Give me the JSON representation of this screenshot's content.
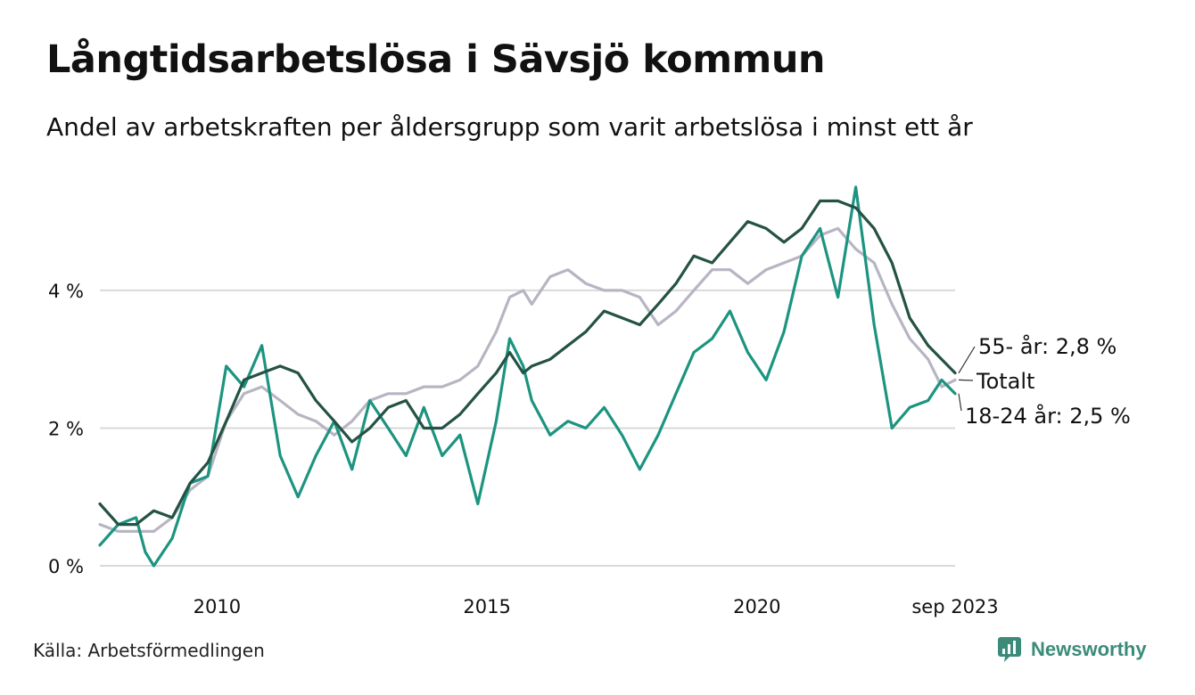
{
  "header": {
    "title": "Långtidsarbetslösa i Sävsjö kommun",
    "subtitle": "Andel av arbetskraften per åldersgrupp som varit arbetslösa i minst ett år"
  },
  "footer": {
    "source": "Källa: Arbetsförmedlingen",
    "brand": "Newsworthy"
  },
  "colors": {
    "series_55": "#245244",
    "series_total": "#b8b5c3",
    "series_18_24": "#1c9480",
    "grid": "#d9d9d9",
    "brand": "#3a8b7a"
  },
  "chart_data": {
    "type": "line",
    "title": "Långtidsarbetslösa i Sävsjö kommun",
    "xlabel": "",
    "ylabel": "",
    "xlim": [
      2007.83,
      2023.67
    ],
    "ylim": [
      0,
      5.5
    ],
    "grid": true,
    "y_ticks": [
      {
        "value": 0,
        "label": "0 %"
      },
      {
        "value": 2,
        "label": "2 %"
      },
      {
        "value": 4,
        "label": "4 %"
      }
    ],
    "x_ticks": [
      {
        "value": 2010,
        "label": "2010"
      },
      {
        "value": 2015,
        "label": "2015"
      },
      {
        "value": 2020,
        "label": "2020"
      },
      {
        "value": 2023.67,
        "label": "sep 2023"
      }
    ],
    "end_labels": [
      {
        "series": "55",
        "text": "55- år: 2,8 %"
      },
      {
        "series": "total",
        "text": "Totalt"
      },
      {
        "series": "18_24",
        "text": "18-24 år: 2,5 %"
      }
    ],
    "series": [
      {
        "id": "total",
        "name": "Totalt",
        "points": [
          [
            2007.83,
            0.6
          ],
          [
            2008.17,
            0.5
          ],
          [
            2008.5,
            0.5
          ],
          [
            2008.83,
            0.5
          ],
          [
            2009.17,
            0.7
          ],
          [
            2009.5,
            1.1
          ],
          [
            2009.83,
            1.3
          ],
          [
            2010.17,
            2.1
          ],
          [
            2010.5,
            2.5
          ],
          [
            2010.83,
            2.6
          ],
          [
            2011.17,
            2.4
          ],
          [
            2011.5,
            2.2
          ],
          [
            2011.83,
            2.1
          ],
          [
            2012.17,
            1.9
          ],
          [
            2012.5,
            2.1
          ],
          [
            2012.83,
            2.4
          ],
          [
            2013.17,
            2.5
          ],
          [
            2013.5,
            2.5
          ],
          [
            2013.83,
            2.6
          ],
          [
            2014.17,
            2.6
          ],
          [
            2014.5,
            2.7
          ],
          [
            2014.83,
            2.9
          ],
          [
            2015.17,
            3.4
          ],
          [
            2015.42,
            3.9
          ],
          [
            2015.67,
            4.0
          ],
          [
            2015.83,
            3.8
          ],
          [
            2016.17,
            4.2
          ],
          [
            2016.5,
            4.3
          ],
          [
            2016.83,
            4.1
          ],
          [
            2017.17,
            4.0
          ],
          [
            2017.5,
            4.0
          ],
          [
            2017.83,
            3.9
          ],
          [
            2018.17,
            3.5
          ],
          [
            2018.5,
            3.7
          ],
          [
            2018.83,
            4.0
          ],
          [
            2019.17,
            4.3
          ],
          [
            2019.5,
            4.3
          ],
          [
            2019.83,
            4.1
          ],
          [
            2020.17,
            4.3
          ],
          [
            2020.5,
            4.4
          ],
          [
            2020.83,
            4.5
          ],
          [
            2021.17,
            4.8
          ],
          [
            2021.5,
            4.9
          ],
          [
            2021.83,
            4.6
          ],
          [
            2022.17,
            4.4
          ],
          [
            2022.5,
            3.8
          ],
          [
            2022.83,
            3.3
          ],
          [
            2023.17,
            3.0
          ],
          [
            2023.42,
            2.6
          ],
          [
            2023.67,
            2.7
          ]
        ]
      },
      {
        "id": "55",
        "name": "55- år",
        "points": [
          [
            2007.83,
            0.9
          ],
          [
            2008.17,
            0.6
          ],
          [
            2008.5,
            0.6
          ],
          [
            2008.83,
            0.8
          ],
          [
            2009.17,
            0.7
          ],
          [
            2009.5,
            1.2
          ],
          [
            2009.83,
            1.5
          ],
          [
            2010.17,
            2.1
          ],
          [
            2010.5,
            2.7
          ],
          [
            2010.83,
            2.8
          ],
          [
            2011.17,
            2.9
          ],
          [
            2011.5,
            2.8
          ],
          [
            2011.83,
            2.4
          ],
          [
            2012.17,
            2.1
          ],
          [
            2012.5,
            1.8
          ],
          [
            2012.83,
            2.0
          ],
          [
            2013.17,
            2.3
          ],
          [
            2013.5,
            2.4
          ],
          [
            2013.83,
            2.0
          ],
          [
            2014.17,
            2.0
          ],
          [
            2014.5,
            2.2
          ],
          [
            2014.83,
            2.5
          ],
          [
            2015.17,
            2.8
          ],
          [
            2015.42,
            3.1
          ],
          [
            2015.67,
            2.8
          ],
          [
            2015.83,
            2.9
          ],
          [
            2016.17,
            3.0
          ],
          [
            2016.5,
            3.2
          ],
          [
            2016.83,
            3.4
          ],
          [
            2017.17,
            3.7
          ],
          [
            2017.5,
            3.6
          ],
          [
            2017.83,
            3.5
          ],
          [
            2018.17,
            3.8
          ],
          [
            2018.5,
            4.1
          ],
          [
            2018.83,
            4.5
          ],
          [
            2019.17,
            4.4
          ],
          [
            2019.5,
            4.7
          ],
          [
            2019.83,
            5.0
          ],
          [
            2020.17,
            4.9
          ],
          [
            2020.5,
            4.7
          ],
          [
            2020.83,
            4.9
          ],
          [
            2021.17,
            5.3
          ],
          [
            2021.5,
            5.3
          ],
          [
            2021.83,
            5.2
          ],
          [
            2022.17,
            4.9
          ],
          [
            2022.5,
            4.4
          ],
          [
            2022.83,
            3.6
          ],
          [
            2023.17,
            3.2
          ],
          [
            2023.42,
            3.0
          ],
          [
            2023.67,
            2.8
          ]
        ]
      },
      {
        "id": "18_24",
        "name": "18-24 år",
        "points": [
          [
            2007.83,
            0.3
          ],
          [
            2008.17,
            0.6
          ],
          [
            2008.5,
            0.7
          ],
          [
            2008.67,
            0.2
          ],
          [
            2008.83,
            0.0
          ],
          [
            2009.17,
            0.4
          ],
          [
            2009.5,
            1.2
          ],
          [
            2009.83,
            1.3
          ],
          [
            2010.17,
            2.9
          ],
          [
            2010.5,
            2.6
          ],
          [
            2010.83,
            3.2
          ],
          [
            2011.17,
            1.6
          ],
          [
            2011.5,
            1.0
          ],
          [
            2011.83,
            1.6
          ],
          [
            2012.17,
            2.1
          ],
          [
            2012.5,
            1.4
          ],
          [
            2012.83,
            2.4
          ],
          [
            2013.17,
            2.0
          ],
          [
            2013.5,
            1.6
          ],
          [
            2013.83,
            2.3
          ],
          [
            2014.17,
            1.6
          ],
          [
            2014.5,
            1.9
          ],
          [
            2014.83,
            0.9
          ],
          [
            2015.17,
            2.1
          ],
          [
            2015.42,
            3.3
          ],
          [
            2015.67,
            2.9
          ],
          [
            2015.83,
            2.4
          ],
          [
            2016.17,
            1.9
          ],
          [
            2016.5,
            2.1
          ],
          [
            2016.83,
            2.0
          ],
          [
            2017.17,
            2.3
          ],
          [
            2017.5,
            1.9
          ],
          [
            2017.83,
            1.4
          ],
          [
            2018.17,
            1.9
          ],
          [
            2018.5,
            2.5
          ],
          [
            2018.83,
            3.1
          ],
          [
            2019.17,
            3.3
          ],
          [
            2019.5,
            3.7
          ],
          [
            2019.83,
            3.1
          ],
          [
            2020.17,
            2.7
          ],
          [
            2020.5,
            3.4
          ],
          [
            2020.83,
            4.5
          ],
          [
            2021.17,
            4.9
          ],
          [
            2021.5,
            3.9
          ],
          [
            2021.83,
            5.5
          ],
          [
            2022.17,
            3.5
          ],
          [
            2022.5,
            2.0
          ],
          [
            2022.83,
            2.3
          ],
          [
            2023.17,
            2.4
          ],
          [
            2023.42,
            2.7
          ],
          [
            2023.67,
            2.5
          ]
        ]
      }
    ]
  }
}
